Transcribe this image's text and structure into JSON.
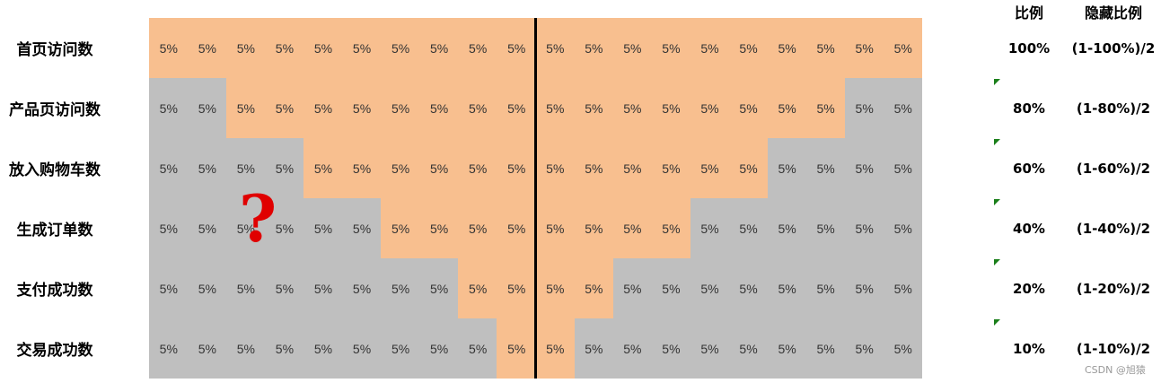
{
  "table": {
    "headers": {
      "ratio": "比例",
      "hidden_ratio": "隐藏比例"
    },
    "highlight_color": "#f8bf8f",
    "base_color": "#bfbfbf",
    "rows": [
      {
        "label": "首页访问数",
        "cells": [
          "5%",
          "5%",
          "5%",
          "5%",
          "5%",
          "5%",
          "5%",
          "5%",
          "5%",
          "5%",
          "5%",
          "5%",
          "5%",
          "5%",
          "5%",
          "5%",
          "5%",
          "5%",
          "5%",
          "5%"
        ],
        "highlighted": [
          0,
          19
        ],
        "ratio": "100%",
        "hidden_ratio": "(1-100%)/2"
      },
      {
        "label": "产品页访问数",
        "cells": [
          "5%",
          "5%",
          "5%",
          "5%",
          "5%",
          "5%",
          "5%",
          "5%",
          "5%",
          "5%",
          "5%",
          "5%",
          "5%",
          "5%",
          "5%",
          "5%",
          "5%",
          "5%",
          "5%",
          "5%"
        ],
        "highlighted": [
          2,
          17
        ],
        "ratio": "80%",
        "hidden_ratio": "(1-80%)/2"
      },
      {
        "label": "放入购物车数",
        "cells": [
          "5%",
          "5%",
          "5%",
          "5%",
          "5%",
          "5%",
          "5%",
          "5%",
          "5%",
          "5%",
          "5%",
          "5%",
          "5%",
          "5%",
          "5%",
          "5%",
          "5%",
          "5%",
          "5%",
          "5%"
        ],
        "highlighted": [
          4,
          15
        ],
        "ratio": "60%",
        "hidden_ratio": "(1-60%)/2"
      },
      {
        "label": "生成订单数",
        "cells": [
          "5%",
          "5%",
          "5%",
          "5%",
          "5%",
          "5%",
          "5%",
          "5%",
          "5%",
          "5%",
          "5%",
          "5%",
          "5%",
          "5%",
          "5%",
          "5%",
          "5%",
          "5%",
          "5%",
          "5%"
        ],
        "highlighted": [
          6,
          13
        ],
        "ratio": "40%",
        "hidden_ratio": "(1-40%)/2"
      },
      {
        "label": "支付成功数",
        "cells": [
          "5%",
          "5%",
          "5%",
          "5%",
          "5%",
          "5%",
          "5%",
          "5%",
          "5%",
          "5%",
          "5%",
          "5%",
          "5%",
          "5%",
          "5%",
          "5%",
          "5%",
          "5%",
          "5%",
          "5%"
        ],
        "highlighted": [
          8,
          11
        ],
        "ratio": "20%",
        "hidden_ratio": "(1-20%)/2"
      },
      {
        "label": "交易成功数",
        "cells": [
          "5%",
          "5%",
          "5%",
          "5%",
          "5%",
          "5%",
          "5%",
          "5%",
          "5%",
          "5%",
          "5%",
          "5%",
          "5%",
          "5%",
          "5%",
          "5%",
          "5%",
          "5%",
          "5%",
          "5%"
        ],
        "highlighted": [
          9,
          10
        ],
        "ratio": "10%",
        "hidden_ratio": "(1-10%)/2"
      }
    ]
  },
  "annotation": "?",
  "watermark": "CSDN @旭猿"
}
